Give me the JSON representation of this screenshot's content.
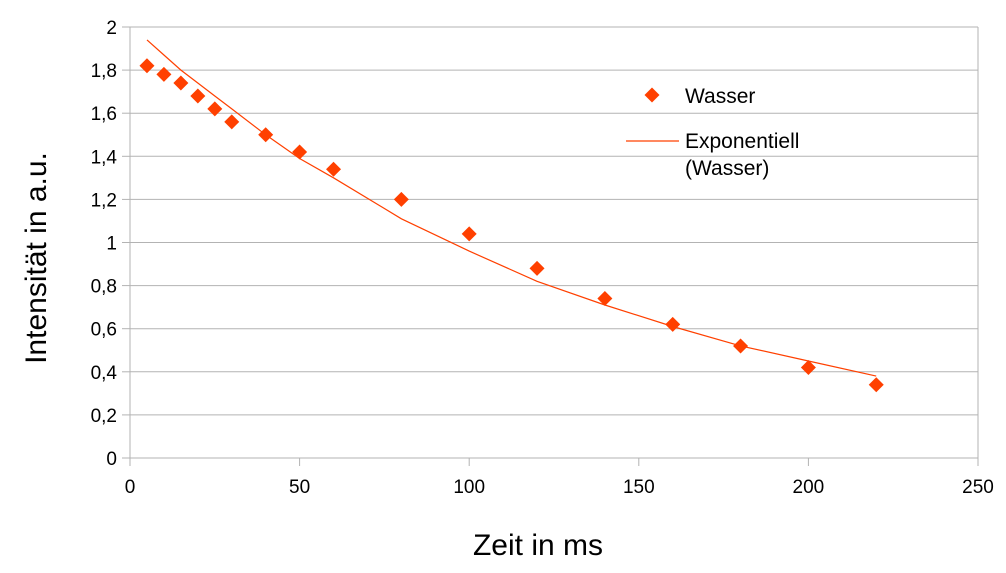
{
  "chart_data": {
    "type": "scatter",
    "xlabel": "Zeit in ms",
    "ylabel": "Intensität in a.u.",
    "xlim": [
      0,
      250
    ],
    "ylim": [
      0,
      2
    ],
    "x_ticks": [
      0,
      50,
      100,
      150,
      200,
      250
    ],
    "x_tick_labels": [
      "0",
      "50",
      "100",
      "150",
      "200",
      "250"
    ],
    "y_ticks": [
      0,
      0.2,
      0.4,
      0.6,
      0.8,
      1,
      1.2,
      1.4,
      1.6,
      1.8,
      2
    ],
    "y_tick_labels": [
      "0",
      "0,2",
      "0,4",
      "0,6",
      "0,8",
      "1",
      "1,2",
      "1,4",
      "1,6",
      "1,8",
      "2"
    ],
    "grid": "horizontal",
    "legend_position": "top-right",
    "series": [
      {
        "name": "Wasser",
        "kind": "markers",
        "marker": "diamond",
        "color": "#ff4000",
        "x": [
          5,
          10,
          15,
          20,
          25,
          30,
          40,
          50,
          60,
          80,
          100,
          120,
          140,
          160,
          180,
          200,
          220
        ],
        "y": [
          1.82,
          1.78,
          1.74,
          1.68,
          1.62,
          1.56,
          1.5,
          1.42,
          1.34,
          1.2,
          1.04,
          0.88,
          0.74,
          0.62,
          0.52,
          0.42,
          0.34
        ]
      },
      {
        "name": "Exponentiell (Wasser)",
        "legend_lines": [
          "Exponentiell",
          "(Wasser)"
        ],
        "kind": "trendline",
        "fit": "exponential",
        "color": "#ff4000",
        "x": [
          5,
          10,
          15,
          20,
          25,
          30,
          40,
          50,
          60,
          80,
          100,
          120,
          140,
          160,
          180,
          200,
          220
        ],
        "y": [
          1.94,
          1.87,
          1.8,
          1.74,
          1.68,
          1.62,
          1.5,
          1.39,
          1.3,
          1.11,
          0.96,
          0.82,
          0.71,
          0.61,
          0.52,
          0.45,
          0.38
        ]
      }
    ]
  }
}
